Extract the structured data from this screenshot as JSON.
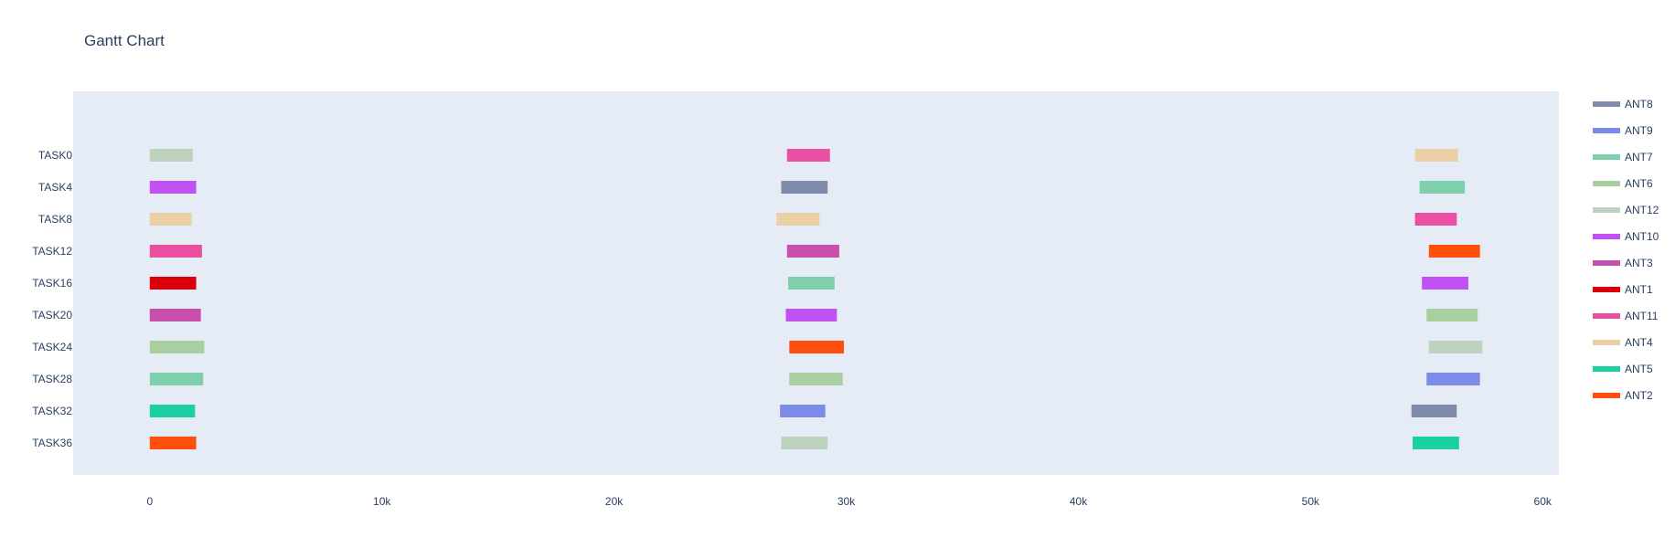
{
  "chart_data": {
    "type": "gantt",
    "title": "Gantt Chart",
    "xlabel": "",
    "ylabel": "",
    "xlim": [
      -3300,
      60700
    ],
    "x_ticks": [
      0,
      10000,
      20000,
      30000,
      40000,
      50000,
      60000
    ],
    "x_tick_labels": [
      "0",
      "10k",
      "20k",
      "30k",
      "40k",
      "50k",
      "60k"
    ],
    "plot_bg": "#e5ecf6",
    "categories": [
      "TASK0",
      "TASK4",
      "TASK8",
      "TASK12",
      "TASK16",
      "TASK20",
      "TASK24",
      "TASK28",
      "TASK32",
      "TASK36"
    ],
    "legend_position": "right",
    "legend": [
      {
        "name": "ANT8",
        "color": "#7f8cab"
      },
      {
        "name": "ANT9",
        "color": "#7d8be8"
      },
      {
        "name": "ANT7",
        "color": "#7ecfab"
      },
      {
        "name": "ANT6",
        "color": "#a9cfa1"
      },
      {
        "name": "ANT12",
        "color": "#bdd1bf"
      },
      {
        "name": "ANT10",
        "color": "#c051f2"
      },
      {
        "name": "ANT3",
        "color": "#c84fab"
      },
      {
        "name": "ANT1",
        "color": "#d9000c"
      },
      {
        "name": "ANT11",
        "color": "#ea4fa2"
      },
      {
        "name": "ANT4",
        "color": "#eacfa4"
      },
      {
        "name": "ANT5",
        "color": "#1ccfa4"
      },
      {
        "name": "ANT2",
        "color": "#ff4f0c"
      }
    ],
    "tasks": [
      {
        "task": "TASK0",
        "resource": "ANT12",
        "start": 0,
        "finish": 1850
      },
      {
        "task": "TASK0",
        "resource": "ANT11",
        "start": 27450,
        "finish": 29300
      },
      {
        "task": "TASK0",
        "resource": "ANT4",
        "start": 54500,
        "finish": 56350
      },
      {
        "task": "TASK4",
        "resource": "ANT10",
        "start": 0,
        "finish": 2000
      },
      {
        "task": "TASK4",
        "resource": "ANT8",
        "start": 27200,
        "finish": 29200
      },
      {
        "task": "TASK4",
        "resource": "ANT7",
        "start": 54700,
        "finish": 56650
      },
      {
        "task": "TASK8",
        "resource": "ANT4",
        "start": 0,
        "finish": 1800
      },
      {
        "task": "TASK8",
        "resource": "ANT4",
        "start": 27000,
        "finish": 28850
      },
      {
        "task": "TASK8",
        "resource": "ANT11",
        "start": 54500,
        "finish": 56300
      },
      {
        "task": "TASK12",
        "resource": "ANT11",
        "start": 0,
        "finish": 2250
      },
      {
        "task": "TASK12",
        "resource": "ANT3",
        "start": 27450,
        "finish": 29700
      },
      {
        "task": "TASK12",
        "resource": "ANT2",
        "start": 55100,
        "finish": 57300
      },
      {
        "task": "TASK16",
        "resource": "ANT1",
        "start": 0,
        "finish": 2000
      },
      {
        "task": "TASK16",
        "resource": "ANT7",
        "start": 27500,
        "finish": 29500
      },
      {
        "task": "TASK16",
        "resource": "ANT10",
        "start": 54800,
        "finish": 56800
      },
      {
        "task": "TASK20",
        "resource": "ANT3",
        "start": 0,
        "finish": 2200
      },
      {
        "task": "TASK20",
        "resource": "ANT10",
        "start": 27400,
        "finish": 29600
      },
      {
        "task": "TASK20",
        "resource": "ANT6",
        "start": 55000,
        "finish": 57200
      },
      {
        "task": "TASK24",
        "resource": "ANT6",
        "start": 0,
        "finish": 2350
      },
      {
        "task": "TASK24",
        "resource": "ANT2",
        "start": 27550,
        "finish": 29900
      },
      {
        "task": "TASK24",
        "resource": "ANT12",
        "start": 55100,
        "finish": 57400
      },
      {
        "task": "TASK28",
        "resource": "ANT7",
        "start": 0,
        "finish": 2300
      },
      {
        "task": "TASK28",
        "resource": "ANT6",
        "start": 27550,
        "finish": 29850
      },
      {
        "task": "TASK28",
        "resource": "ANT9",
        "start": 55000,
        "finish": 57300
      },
      {
        "task": "TASK32",
        "resource": "ANT5",
        "start": 0,
        "finish": 1950
      },
      {
        "task": "TASK32",
        "resource": "ANT9",
        "start": 27150,
        "finish": 29100
      },
      {
        "task": "TASK32",
        "resource": "ANT8",
        "start": 54350,
        "finish": 56300
      },
      {
        "task": "TASK36",
        "resource": "ANT2",
        "start": 0,
        "finish": 2000
      },
      {
        "task": "TASK36",
        "resource": "ANT12",
        "start": 27200,
        "finish": 29200
      },
      {
        "task": "TASK36",
        "resource": "ANT5",
        "start": 54400,
        "finish": 56400
      }
    ]
  }
}
